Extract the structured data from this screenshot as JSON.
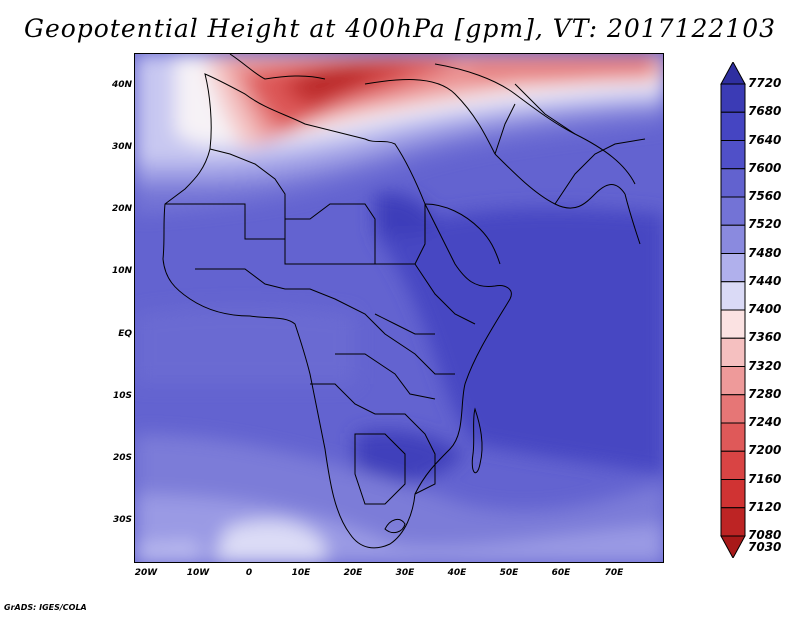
{
  "title": "Geopotential Height at 400hPa [gpm], VT: 2017122103",
  "credit": "GrADS: IGES/COLA",
  "map": {
    "lat_ticks": [
      "40N",
      "30N",
      "20N",
      "10N",
      "EQ",
      "10S",
      "20S",
      "30S"
    ],
    "lon_ticks": [
      "20W",
      "10W",
      "0",
      "10E",
      "20E",
      "30E",
      "40E",
      "50E",
      "60E",
      "70E"
    ]
  },
  "colorbar": {
    "levels": [
      "7720",
      "7680",
      "7640",
      "7600",
      "7560",
      "7520",
      "7480",
      "7440",
      "7400",
      "7360",
      "7320",
      "7280",
      "7240",
      "7200",
      "7160",
      "7120",
      "7080",
      "7030"
    ],
    "colors": [
      "#2f2fa0",
      "#3b3bb5",
      "#4545c2",
      "#5050c8",
      "#6262cf",
      "#7373d6",
      "#8a8adf",
      "#b0b0ec",
      "#dadaf6",
      "#fbe2e2",
      "#f5c0c0",
      "#ee9a9a",
      "#e67676",
      "#df5959",
      "#d94444",
      "#d03333",
      "#bd2424",
      "#a81919"
    ],
    "min_label": "7030",
    "max_label": "7720"
  }
}
